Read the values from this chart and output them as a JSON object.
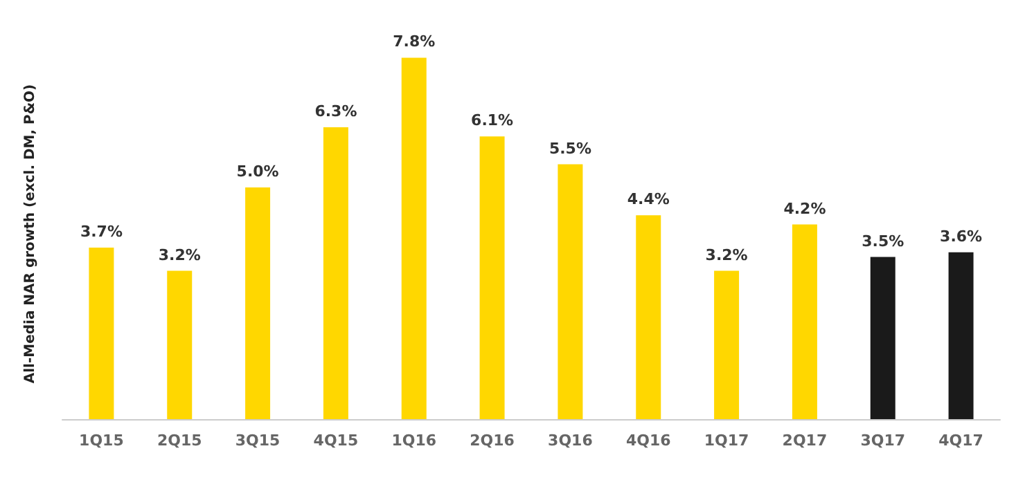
{
  "chart_data": {
    "type": "bar",
    "ylabel": "All-Media NAR growth (excl. DM, P&O)",
    "categories": [
      "1Q15",
      "2Q15",
      "3Q15",
      "4Q15",
      "1Q16",
      "2Q16",
      "3Q16",
      "4Q16",
      "1Q17",
      "2Q17",
      "3Q17",
      "4Q17"
    ],
    "values": [
      3.7,
      3.2,
      5.0,
      6.3,
      7.8,
      6.1,
      5.5,
      4.4,
      3.2,
      4.2,
      3.5,
      3.6
    ],
    "colors": [
      "#ffd700",
      "#ffd700",
      "#ffd700",
      "#ffd700",
      "#ffd700",
      "#ffd700",
      "#ffd700",
      "#ffd700",
      "#ffd700",
      "#ffd700",
      "#1a1a1a",
      "#1a1a1a"
    ],
    "value_labels": [
      "3.7%",
      "3.2%",
      "5.0%",
      "6.3%",
      "7.8%",
      "6.1%",
      "5.5%",
      "4.4%",
      "3.2%",
      "4.2%",
      "3.5%",
      "3.6%"
    ],
    "grid": false
  }
}
